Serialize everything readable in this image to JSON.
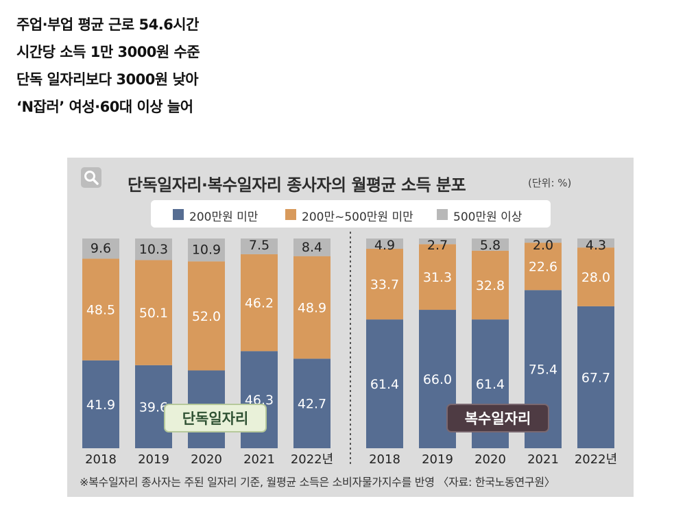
{
  "headlines": [
    "주업·부업 평균 근로 54.6시간",
    "시간당 소득 1만 3000원 수준",
    "단독 일자리보다 3000원 낮아",
    "‘N잡러’ 여성·60대 이상 늘어"
  ],
  "chart_data": {
    "type": "bar",
    "stacked": true,
    "title": "단독일자리·복수일자리 종사자의 월평균 소득 분포",
    "unit": "(단위: %)",
    "legend_position": "top",
    "colors": {
      "under_200": "#566d92",
      "between": "#d89a5c",
      "over_500": "#b8b8b8"
    },
    "series_names": [
      "200만원 미만",
      "200만~500만원 미만",
      "500만원 이상"
    ],
    "groups": [
      {
        "label": "단독일자리",
        "categories": [
          "2018",
          "2019",
          "2020",
          "2021",
          "2022년"
        ],
        "series": [
          {
            "name": "200만원 미만",
            "values": [
              41.9,
              39.6,
              37.1,
              46.3,
              42.7
            ]
          },
          {
            "name": "200만~500만원 미만",
            "values": [
              48.5,
              50.1,
              52.0,
              46.2,
              48.9
            ]
          },
          {
            "name": "500만원 이상",
            "values": [
              9.6,
              10.3,
              10.9,
              7.5,
              8.4
            ]
          }
        ]
      },
      {
        "label": "복수일자리",
        "categories": [
          "2018",
          "2019",
          "2020",
          "2021",
          "2022년"
        ],
        "series": [
          {
            "name": "200만원 미만",
            "values": [
              61.4,
              66.0,
              61.4,
              75.4,
              67.7
            ]
          },
          {
            "name": "200만~500만원 미만",
            "values": [
              33.7,
              31.3,
              32.8,
              22.6,
              28.0
            ]
          },
          {
            "name": "500만원 이상",
            "values": [
              4.9,
              2.7,
              5.8,
              2.0,
              4.3
            ]
          }
        ]
      }
    ],
    "footnote": "※복수일자리 종사자는 주된 일자리 기준, 월평균 소득은 소비자물가지수를 반영 〈자료: 한국노동연구원〉"
  }
}
